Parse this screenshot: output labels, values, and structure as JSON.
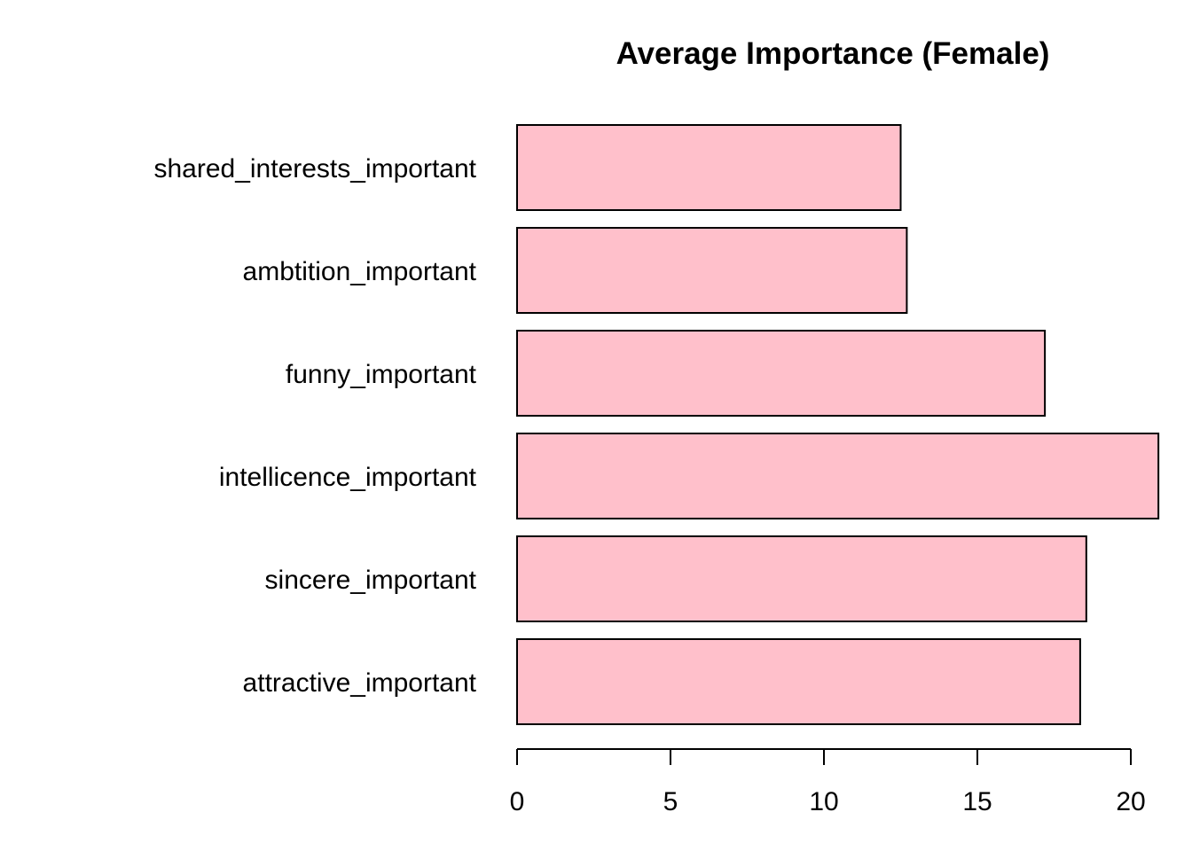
{
  "chart_data": {
    "type": "bar",
    "orientation": "horizontal",
    "title": "Average Importance (Female)",
    "xlabel": "",
    "ylabel": "",
    "categories": [
      "attractive_important",
      "sincere_important",
      "intellicence_important",
      "funny_important",
      "ambtition_important",
      "shared_interests_important"
    ],
    "values": [
      18.35,
      18.55,
      20.9,
      17.2,
      12.7,
      12.5
    ],
    "xlim": [
      0,
      20.9
    ],
    "xticks": [
      0,
      5,
      10,
      15,
      20
    ],
    "grid": false,
    "legend": "none",
    "bar_color": "#FFC0CB",
    "border_color": "#000000"
  }
}
